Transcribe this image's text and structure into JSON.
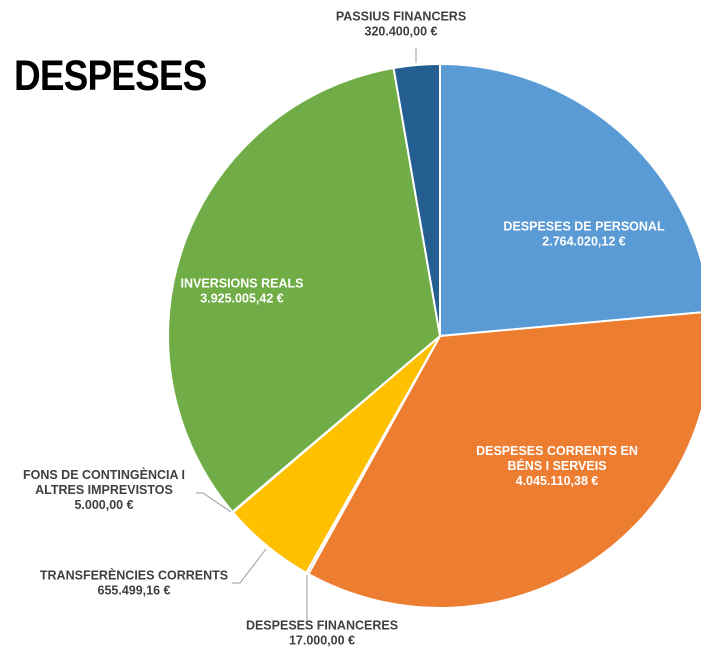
{
  "title": "DESPESES",
  "chart_data": {
    "type": "pie",
    "title": "DESPESES",
    "slices": [
      {
        "label": "DESPESES DE PERSONAL",
        "value": 2764020.12,
        "value_label": "2.764.020,12 €",
        "color": "#5B9BD5",
        "label_lines": [
          "DESPESES DE PERSONAL"
        ]
      },
      {
        "label": "DESPESES CORRENTS EN BÉNS I SERVEIS",
        "value": 4045110.38,
        "value_label": "4.045.110,38 €",
        "color": "#ED7D31",
        "label_lines": [
          "DESPESES CORRENTS EN",
          "BÉNS I SERVEIS"
        ]
      },
      {
        "label": "DESPESES FINANCERES",
        "value": 17000.0,
        "value_label": "17.000,00 €",
        "color": "#A5A5A5",
        "label_lines": [
          "DESPESES FINANCERES"
        ]
      },
      {
        "label": "TRANSFERÈNCIES CORRENTS",
        "value": 655499.16,
        "value_label": "655.499,16 €",
        "color": "#FFC000",
        "label_lines": [
          "TRANSFERÈNCIES CORRENTS"
        ]
      },
      {
        "label": "FONS DE CONTINGÈNCIA I ALTRES IMPREVISTOS",
        "value": 5000.0,
        "value_label": "5.000,00 €",
        "color": "#4472C4",
        "label_lines": [
          "FONS DE CONTINGÈNCIA I",
          "ALTRES IMPREVISTOS"
        ]
      },
      {
        "label": "INVERSIONS REALS",
        "value": 3925005.42,
        "value_label": "3.925.005,42 €",
        "color": "#70AD47",
        "label_lines": [
          "INVERSIONS REALS"
        ]
      },
      {
        "label": "PASSIUS FINANCERS",
        "value": 320400.0,
        "value_label": "320.400,00 €",
        "color": "#255E91",
        "label_lines": [
          "PASSIUS FINANCERS"
        ]
      }
    ]
  }
}
